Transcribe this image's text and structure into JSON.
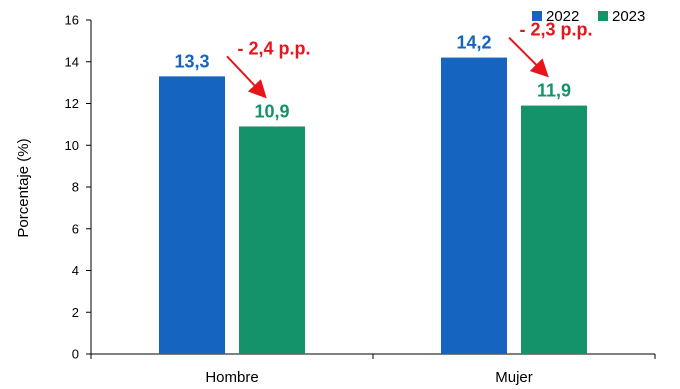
{
  "chart_data": {
    "type": "bar",
    "title": "",
    "xlabel": "",
    "ylabel": "Porcentaje (%)",
    "categories": [
      "Hombre",
      "Mujer"
    ],
    "ylim": [
      0,
      16
    ],
    "yticks": [
      "0",
      "2",
      "4",
      "6",
      "8",
      "10",
      "12",
      "14",
      "16"
    ],
    "grid": false,
    "legend_position": "top-right",
    "series": [
      {
        "name": "2022",
        "color": "#1565C0",
        "values": [
          13.3,
          14.2
        ],
        "labels": [
          "13,3",
          "14,2"
        ]
      },
      {
        "name": "2023",
        "color": "#14926A",
        "values": [
          10.9,
          11.9
        ],
        "labels": [
          "10,9",
          "11,9"
        ]
      }
    ],
    "annotations": [
      {
        "category": "Hombre",
        "text": "- 2,4 p.p.",
        "color": "#E8141B"
      },
      {
        "category": "Mujer",
        "text": "- 2,3 p.p.",
        "color": "#E8141B"
      }
    ]
  }
}
